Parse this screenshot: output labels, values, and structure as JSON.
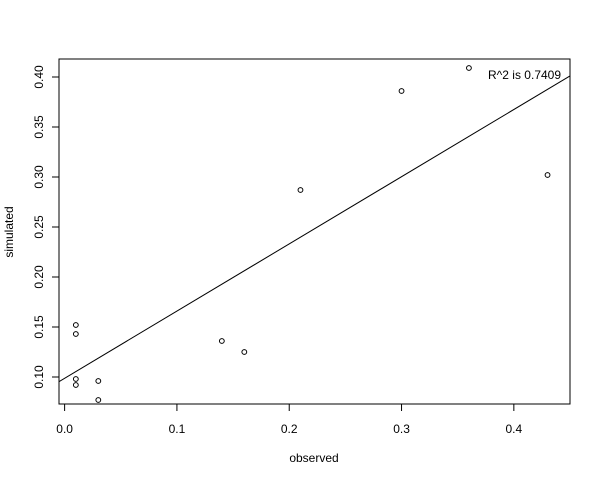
{
  "chart_data": {
    "type": "scatter",
    "xlabel": "observed",
    "ylabel": "simulated",
    "xlim": [
      -0.005,
      0.45
    ],
    "ylim": [
      0.073,
      0.418
    ],
    "x_ticks": [
      0.0,
      0.1,
      0.2,
      0.3,
      0.4
    ],
    "x_tick_labels": [
      "0.0",
      "0.1",
      "0.2",
      "0.3",
      "0.4"
    ],
    "y_ticks": [
      0.1,
      0.15,
      0.2,
      0.25,
      0.3,
      0.35,
      0.4
    ],
    "y_tick_labels": [
      "0.10",
      "0.15",
      "0.20",
      "0.25",
      "0.30",
      "0.35",
      "0.40"
    ],
    "grid": false,
    "points": [
      {
        "x": 0.01,
        "y": 0.152
      },
      {
        "x": 0.01,
        "y": 0.143
      },
      {
        "x": 0.01,
        "y": 0.098
      },
      {
        "x": 0.01,
        "y": 0.092
      },
      {
        "x": 0.03,
        "y": 0.096
      },
      {
        "x": 0.03,
        "y": 0.077
      },
      {
        "x": 0.14,
        "y": 0.136
      },
      {
        "x": 0.16,
        "y": 0.125
      },
      {
        "x": 0.21,
        "y": 0.287
      },
      {
        "x": 0.3,
        "y": 0.386
      },
      {
        "x": 0.36,
        "y": 0.409
      },
      {
        "x": 0.43,
        "y": 0.302
      }
    ],
    "regression_line": {
      "intercept": 0.0987,
      "slope": 0.672
    },
    "annotation": "R^2 is 0.7409"
  }
}
